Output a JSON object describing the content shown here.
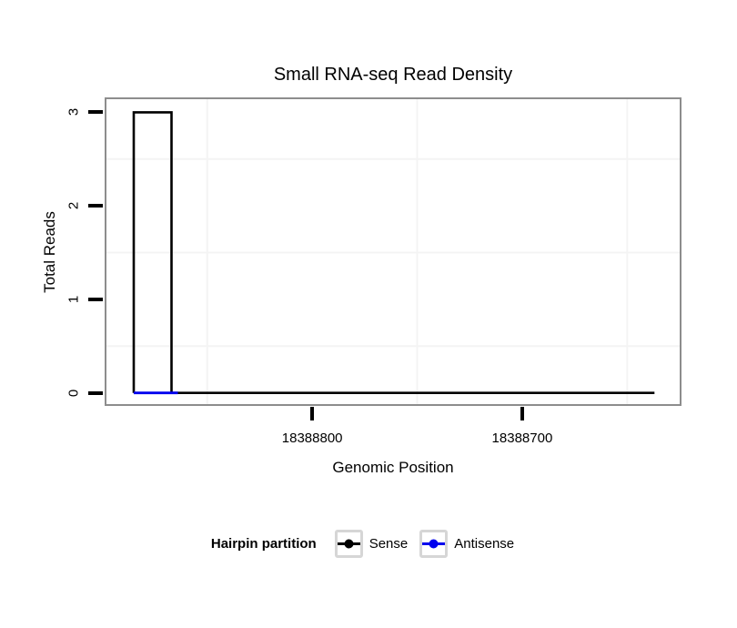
{
  "chart_data": {
    "type": "line",
    "title": "Small RNA-seq Read Density",
    "xlabel": "Genomic Position",
    "ylabel": "Total Reads",
    "x_reversed": true,
    "xlim": [
      18388898,
      18388625
    ],
    "ylim": [
      -0.12,
      3.14
    ],
    "x_ticks": [
      {
        "value": 18388800,
        "label": "18388800"
      },
      {
        "value": 18388700,
        "label": "18388700"
      }
    ],
    "y_ticks": [
      {
        "value": 0,
        "label": "0"
      },
      {
        "value": 1,
        "label": "1"
      },
      {
        "value": 2,
        "label": "2"
      },
      {
        "value": 3,
        "label": "3"
      }
    ],
    "minor_grid_x": [
      18388850,
      18388750,
      18388650
    ],
    "minor_grid_y": [
      0.5,
      1.5,
      2.5
    ],
    "grid": true,
    "series": [
      {
        "name": "Sense",
        "color": "#000000",
        "line_width": 2.6,
        "points": [
          [
            18388885,
            0
          ],
          [
            18388885,
            3
          ],
          [
            18388867,
            3
          ],
          [
            18388867,
            0
          ],
          [
            18388637,
            0
          ]
        ]
      },
      {
        "name": "Antisense",
        "color": "#0000EE",
        "line_width": 2.8,
        "points": [
          [
            18388885,
            0
          ],
          [
            18388864,
            0
          ]
        ]
      }
    ],
    "legend": {
      "title": "Hairpin partition",
      "position": "bottom",
      "items": [
        {
          "label": "Sense",
          "color": "#000000"
        },
        {
          "label": "Antisense",
          "color": "#0000EE"
        }
      ]
    }
  },
  "colors": {
    "panel_border": "#8d8d8d",
    "grid_minor": "#f4f4f4",
    "tick": "#000000",
    "legend_key_border": "#d6d6d6",
    "background": "#ffffff"
  }
}
